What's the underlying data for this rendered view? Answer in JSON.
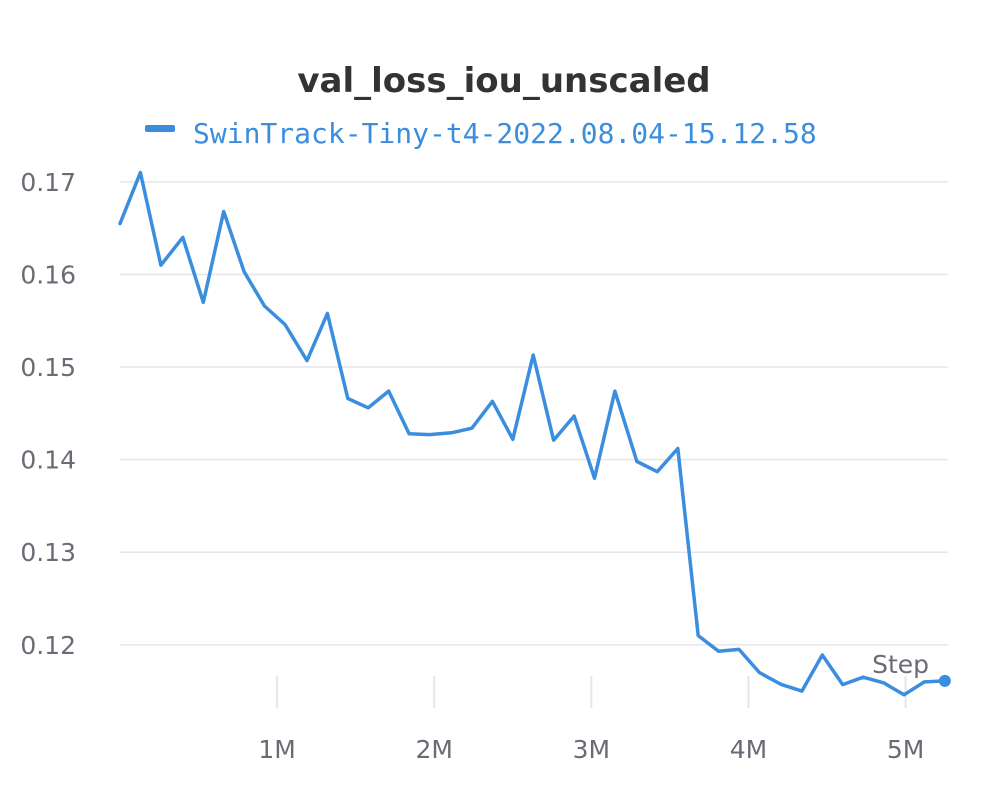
{
  "chart_data": {
    "type": "line",
    "title": "val_loss_iou_unscaled",
    "xlabel": "Step",
    "ylabel": "",
    "xlim": [
      0,
      5270000
    ],
    "ylim": [
      0.1135,
      0.1715
    ],
    "grid": true,
    "legend_position": "top",
    "x_ticks": [
      1000000,
      2000000,
      3000000,
      4000000,
      5000000
    ],
    "x_tick_labels": [
      "1M",
      "2M",
      "3M",
      "4M",
      "5M"
    ],
    "y_ticks": [
      0.12,
      0.13,
      0.14,
      0.15,
      0.16,
      0.17
    ],
    "y_tick_labels": [
      "0.12",
      "0.13",
      "0.14",
      "0.15",
      "0.16",
      "0.17"
    ],
    "series": [
      {
        "name": "SwinTrack-Tiny-t4-2022.08.04-15.12.58",
        "color": "#3b8ede",
        "x": [
          0,
          130000,
          260000,
          400000,
          530000,
          660000,
          790000,
          920000,
          1050000,
          1190000,
          1320000,
          1450000,
          1580000,
          1710000,
          1840000,
          1970000,
          2110000,
          2240000,
          2370000,
          2500000,
          2630000,
          2760000,
          2890000,
          3020000,
          3150000,
          3290000,
          3420000,
          3550000,
          3680000,
          3810000,
          3940000,
          4070000,
          4210000,
          4340000,
          4470000,
          4600000,
          4730000,
          4860000,
          4990000,
          5120000,
          5250000
        ],
        "y": [
          0.1655,
          0.171,
          0.161,
          0.164,
          0.157,
          0.1668,
          0.1603,
          0.1566,
          0.1546,
          0.1507,
          0.1558,
          0.1466,
          0.1456,
          0.1474,
          0.1428,
          0.1427,
          0.1429,
          0.1434,
          0.1463,
          0.1422,
          0.1513,
          0.1421,
          0.1447,
          0.138,
          0.1474,
          0.1398,
          0.1387,
          0.1412,
          0.121,
          0.1193,
          0.1195,
          0.117,
          0.1157,
          0.115,
          0.1189,
          0.1157,
          0.1165,
          0.1159,
          0.1146,
          0.116,
          0.1161
        ]
      }
    ]
  }
}
